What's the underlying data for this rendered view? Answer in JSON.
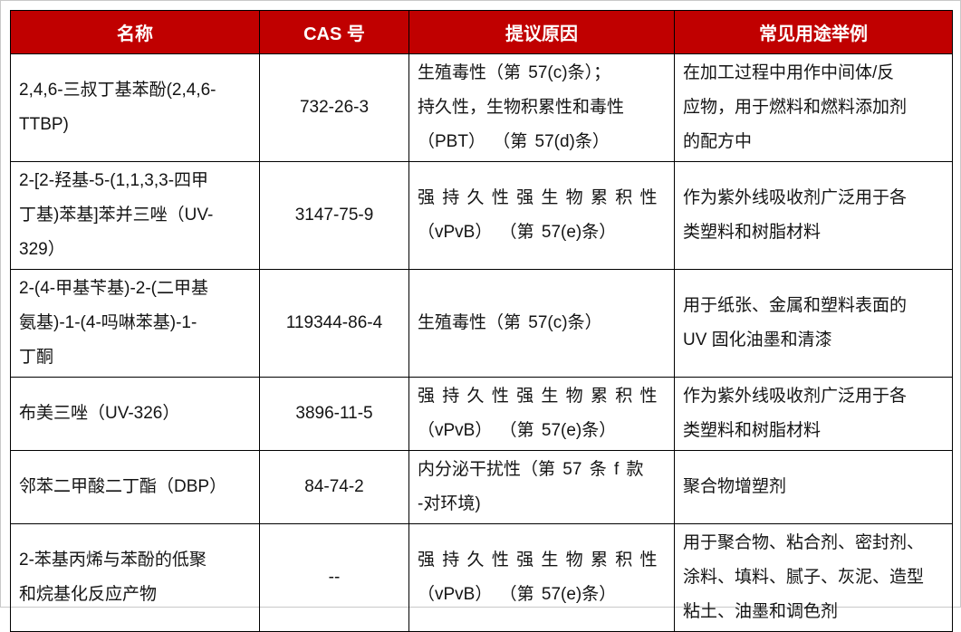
{
  "page": {
    "background": "#ffffff",
    "frame_color": "#c9c9c9"
  },
  "table": {
    "header_bg": "#c00000",
    "header_text_color": "#ffffff",
    "grid_color": "#000000",
    "columns": [
      {
        "key": "name",
        "label": "名称"
      },
      {
        "key": "cas",
        "label": "CAS 号"
      },
      {
        "key": "reason",
        "label": "提议原因"
      },
      {
        "key": "uses",
        "label": "常见用途举例"
      }
    ],
    "rows": [
      {
        "name": "2,4,6-三叔丁基苯酚(2,4,6-\nTTBP)",
        "cas": "732-26-3",
        "reason": "生殖毒性（第 57(c)条）；\n持久性，生物积累性和毒性\n（PBT） （第 57(d)条）",
        "uses": "在加工过程中用作中间体/反\n应物，用于燃料和燃料添加剂\n的配方中"
      },
      {
        "name": "2-[2-羟基-5-(1,1,3,3-四甲\n丁基)苯基]苯并三唑（UV-\n329）",
        "cas": "3147-75-9",
        "reason": "强 持 久 性 强 生 物 累 积 性\n（vPvB） （第 57(e)条）",
        "uses": "作为紫外线吸收剂广泛用于各\n类塑料和树脂材料"
      },
      {
        "name": "2-(4-甲基苄基)-2-(二甲基\n氨基)-1-(4-吗啉苯基)-1-\n丁酮",
        "cas": "119344-86-4",
        "reason": "生殖毒性（第 57(c)条）",
        "uses": "用于纸张、金属和塑料表面的\nUV 固化油墨和清漆"
      },
      {
        "name": "布美三唑（UV-326）",
        "cas": "3896-11-5",
        "reason": "强 持 久 性 强 生 物 累 积 性\n（vPvB） （第 57(e)条）",
        "uses": "作为紫外线吸收剂广泛用于各\n类塑料和树脂材料"
      },
      {
        "name": "邻苯二甲酸二丁酯（DBP）",
        "cas": "84-74-2",
        "reason": "内分泌干扰性（第 57 条 f 款\n-对环境)",
        "uses": "聚合物增塑剂"
      },
      {
        "name": "2-苯基丙烯与苯酚的低聚\n和烷基化反应产物",
        "cas": "--",
        "reason": "强 持 久 性 强 生 物 累 积 性\n（vPvB） （第 57(e)条）",
        "uses": "用于聚合物、粘合剂、密封剂、\n涂料、填料、腻子、灰泥、造型\n粘土、油墨和调色剂"
      }
    ]
  }
}
